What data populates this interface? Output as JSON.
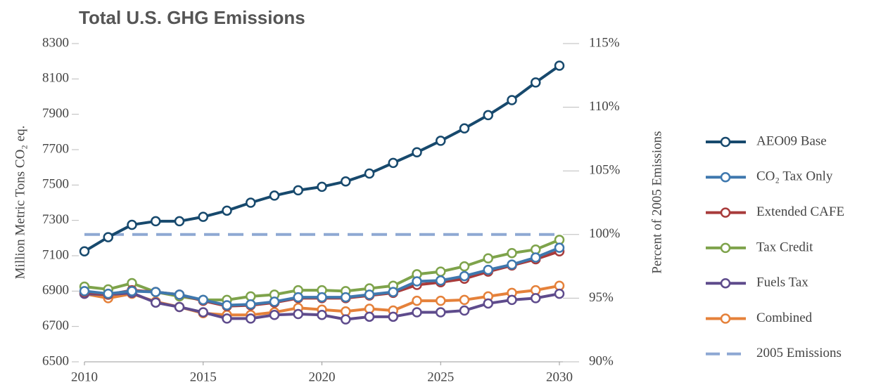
{
  "chart_data": {
    "type": "line",
    "title": "Total U.S. GHG Emissions",
    "y_label": "Million Metric Tons CO₂ eq.",
    "y2_label": "Percent of 2005 Emissions",
    "x": [
      2010,
      2011,
      2012,
      2013,
      2014,
      2015,
      2016,
      2017,
      2018,
      2019,
      2020,
      2021,
      2022,
      2023,
      2024,
      2025,
      2026,
      2027,
      2028,
      2029,
      2030
    ],
    "xlim": [
      2010,
      2030
    ],
    "xticks": [
      2010,
      2015,
      2020,
      2025,
      2030
    ],
    "ylim": [
      6500,
      8300
    ],
    "yticks": [
      6500,
      6700,
      6900,
      7100,
      7300,
      7500,
      7700,
      7900,
      8100,
      8300
    ],
    "y2lim": [
      90,
      115
    ],
    "y2ticks": [
      {
        "value": 90,
        "label": "90%"
      },
      {
        "value": 95,
        "label": "95%"
      },
      {
        "value": 100,
        "label": "100%"
      },
      {
        "value": 105,
        "label": "105%"
      },
      {
        "value": 110,
        "label": "110%"
      },
      {
        "value": 115,
        "label": "115%"
      }
    ],
    "series": [
      {
        "name": "AEO09 Base",
        "color": "#17496d",
        "values": [
          7125,
          7205,
          7275,
          7295,
          7295,
          7320,
          7355,
          7400,
          7440,
          7470,
          7490,
          7520,
          7565,
          7625,
          7685,
          7750,
          7820,
          7895,
          7980,
          8080,
          8175
        ]
      },
      {
        "name": "CO₂ Tax Only",
        "color": "#3f78ae",
        "values": [
          6900,
          6885,
          6900,
          6895,
          6880,
          6850,
          6820,
          6825,
          6840,
          6865,
          6865,
          6865,
          6880,
          6895,
          6955,
          6960,
          6985,
          7020,
          7050,
          7090,
          7145
        ]
      },
      {
        "name": "Extended CAFE",
        "color": "#a83b3b",
        "values": [
          6895,
          6880,
          6905,
          6895,
          6880,
          6845,
          6815,
          6820,
          6835,
          6860,
          6860,
          6860,
          6875,
          6890,
          6935,
          6950,
          6970,
          7010,
          7045,
          7080,
          7125
        ]
      },
      {
        "name": "Tax Credit",
        "color": "#7ea34b",
        "values": [
          6925,
          6910,
          6945,
          6895,
          6870,
          6850,
          6850,
          6870,
          6880,
          6905,
          6905,
          6900,
          6915,
          6930,
          6995,
          7010,
          7040,
          7085,
          7115,
          7135,
          7190
        ]
      },
      {
        "name": "Fuels Tax",
        "color": "#5e4b8c",
        "values": [
          6885,
          6880,
          6890,
          6835,
          6810,
          6780,
          6745,
          6745,
          6765,
          6770,
          6765,
          6740,
          6755,
          6755,
          6780,
          6780,
          6790,
          6830,
          6850,
          6860,
          6885
        ]
      },
      {
        "name": "Combined",
        "color": "#e5813a",
        "values": [
          6885,
          6860,
          6885,
          6840,
          6810,
          6775,
          6765,
          6765,
          6780,
          6805,
          6795,
          6785,
          6800,
          6790,
          6845,
          6845,
          6850,
          6870,
          6890,
          6905,
          6930
        ]
      }
    ],
    "reference_lines": [
      {
        "name": "2005 Emissions",
        "value": 100,
        "axis": "y2",
        "color": "#8ea8d3",
        "dashed": true
      }
    ]
  }
}
